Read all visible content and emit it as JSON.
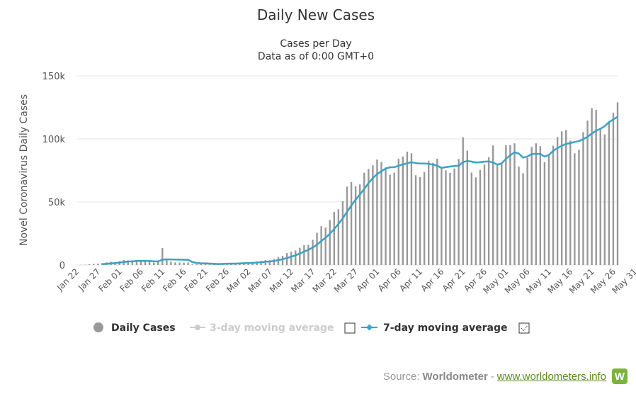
{
  "chart_data": {
    "type": "bar",
    "title": "Daily New Cases",
    "subtitle": "Cases per Day",
    "subtitle2": "Data as of 0:00 GMT+0",
    "ylabel": "Novel Coronavirus Daily Cases",
    "ylim": [
      0,
      150000
    ],
    "ytick_labels": [
      "0",
      "50k",
      "100k",
      "150k"
    ],
    "ytick_values": [
      0,
      50000,
      100000,
      150000
    ],
    "grid": true,
    "legend_position": "bottom",
    "start_date": "Jan 22",
    "x_tick_labels": [
      "Jan 22",
      "Jan 27",
      "Feb 01",
      "Feb 06",
      "Feb 11",
      "Feb 16",
      "Feb 21",
      "Feb 26",
      "Mar 02",
      "Mar 07",
      "Mar 12",
      "Mar 17",
      "Mar 22",
      "Mar 27",
      "Apr 01",
      "Apr 06",
      "Apr 11",
      "Apr 16",
      "Apr 21",
      "Apr 26",
      "May 01",
      "May 06",
      "May 11",
      "May 16",
      "May 21",
      "May 26",
      "May 31"
    ],
    "series": [
      {
        "name": "Daily Cases",
        "color": "#999999",
        "values": [
          0,
          100,
          200,
          600,
          900,
          1100,
          1600,
          2100,
          2600,
          2100,
          3100,
          3900,
          3700,
          3200,
          3700,
          3000,
          2700,
          2600,
          2000,
          2400,
          13500,
          5100,
          2600,
          2100,
          2000,
          1900,
          2000,
          500,
          500,
          600,
          1800,
          500,
          600,
          900,
          1400,
          1500,
          1100,
          1700,
          2000,
          1800,
          1900,
          2300,
          2800,
          3200,
          3900,
          3800,
          4800,
          6400,
          7300,
          9500,
          10500,
          11600,
          13700,
          15700,
          16000,
          20000,
          25500,
          30800,
          29700,
          35600,
          42200,
          44200,
          50600,
          62200,
          65700,
          62500,
          63900,
          73200,
          76200,
          79100,
          83600,
          81700,
          77400,
          71600,
          73200,
          84300,
          86100,
          89900,
          88700,
          71200,
          69700,
          73600,
          82700,
          81100,
          84300,
          76700,
          75100,
          73100,
          76500,
          84100,
          101300,
          90700,
          73300,
          69500,
          75400,
          79600,
          85400,
          94800,
          79100,
          80000,
          94900,
          95100,
          96500,
          78000,
          72700,
          85100,
          93600,
          96500,
          94300,
          81600,
          87300,
          94600,
          101400,
          106000,
          107000,
          98600,
          88600,
          91400,
          105300,
          114500,
          124400,
          123000,
          108600,
          103600,
          113300,
          120800,
          129000
        ]
      },
      {
        "name": "3-day moving average",
        "color": "#cccccc",
        "disabled": true
      },
      {
        "name": "7-day moving average",
        "color": "#3aa2c6"
      }
    ]
  },
  "credit": {
    "source_label": "Source:",
    "brand": "Worldometer",
    "separator": "-",
    "link": "www.worldometers.info",
    "logo_letter": "W"
  }
}
